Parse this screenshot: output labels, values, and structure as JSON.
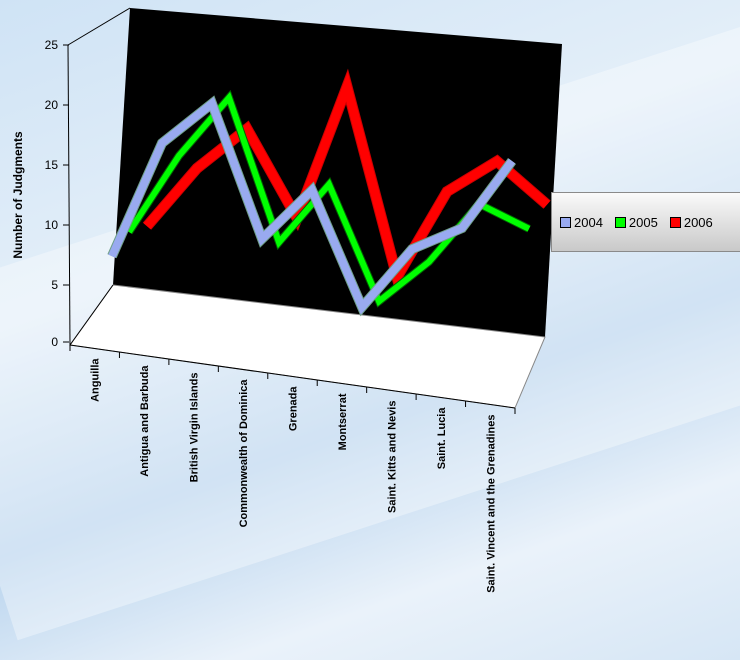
{
  "chart_data": {
    "type": "line",
    "title": "",
    "xlabel": "",
    "ylabel": "Number of Judgments",
    "ylim": [
      0,
      25
    ],
    "yticks": [
      "0",
      "5",
      "10",
      "15",
      "20",
      "25"
    ],
    "categories": [
      "Anguilla",
      "Antigua and Barbuda",
      "British Virgin Islands",
      "Commonwealth of  Dominica",
      "Grenada",
      "Montserrat",
      "Saint. Kitts and Nevis",
      "Saint. Lucia",
      "Saint. Vincent and the Grenadines"
    ],
    "series": [
      {
        "name": "2004",
        "color": "#99aaf0",
        "values": [
          4,
          17,
          22,
          8,
          14,
          2,
          9,
          12,
          20
        ]
      },
      {
        "name": "2005",
        "color": "#00ff00",
        "values": [
          5,
          14,
          21,
          6,
          13,
          1,
          6,
          13,
          11
        ]
      },
      {
        "name": "2006",
        "color": "#ff0000",
        "values": [
          4,
          11,
          16,
          7,
          22,
          2,
          12,
          16,
          12
        ]
      }
    ],
    "grid": false,
    "legend_position": "right"
  }
}
